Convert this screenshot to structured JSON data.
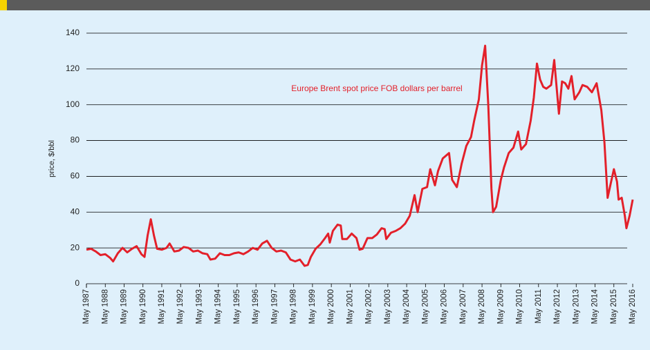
{
  "chart_data": {
    "type": "line",
    "y_label": "price, $/bbl",
    "annotation": "Europe Brent spot price FOB dollars per barrel",
    "ylim": [
      0,
      140
    ],
    "yticks": [
      0,
      20,
      40,
      60,
      80,
      100,
      120,
      140
    ],
    "grid": true,
    "xlim": [
      "1987-05",
      "2016-05"
    ],
    "xticks": [
      {
        "value": "1987-05",
        "label": "May 1987"
      },
      {
        "value": "1988-05",
        "label": "May 1988"
      },
      {
        "value": "1989-05",
        "label": "May 1989"
      },
      {
        "value": "1990-05",
        "label": "May 1990"
      },
      {
        "value": "1991-05",
        "label": "May 1991"
      },
      {
        "value": "1992-05",
        "label": "May 1992"
      },
      {
        "value": "1993-05",
        "label": "May 1993"
      },
      {
        "value": "1994-05",
        "label": "May 1994"
      },
      {
        "value": "1995-05",
        "label": "May 1995"
      },
      {
        "value": "1996-05",
        "label": "May 1996"
      },
      {
        "value": "1997-05",
        "label": "May 1997"
      },
      {
        "value": "1998-05",
        "label": "May 1998"
      },
      {
        "value": "1999-05",
        "label": "May 1999"
      },
      {
        "value": "2000-05",
        "label": "May 2000"
      },
      {
        "value": "2001-05",
        "label": "May 2001"
      },
      {
        "value": "2002-05",
        "label": "May 2002"
      },
      {
        "value": "2003-05",
        "label": "May 2003"
      },
      {
        "value": "2004-05",
        "label": "May 2004"
      },
      {
        "value": "2005-05",
        "label": "May 2005"
      },
      {
        "value": "2006-05",
        "label": "May 2006"
      },
      {
        "value": "2007-05",
        "label": "May 2007"
      },
      {
        "value": "2008-05",
        "label": "May 2008"
      },
      {
        "value": "2009-05",
        "label": "May 2009"
      },
      {
        "value": "2010-05",
        "label": "May 2010"
      },
      {
        "value": "2011-05",
        "label": "May 2011"
      },
      {
        "value": "2012-05",
        "label": "May 2012"
      },
      {
        "value": "2013-05",
        "label": "May 2013"
      },
      {
        "value": "2014-05",
        "label": "May 2014"
      },
      {
        "value": "2015-05",
        "label": "May 2015"
      },
      {
        "value": "2016-05",
        "label": "May 2016"
      }
    ],
    "x": [
      "1987-05",
      "1987-08",
      "1987-11",
      "1988-02",
      "1988-05",
      "1988-08",
      "1988-10",
      "1989-01",
      "1989-04",
      "1989-07",
      "1989-10",
      "1990-01",
      "1990-04",
      "1990-06",
      "1990-08",
      "1990-10",
      "1990-12",
      "1991-02",
      "1991-05",
      "1991-08",
      "1991-10",
      "1992-01",
      "1992-04",
      "1992-07",
      "1992-10",
      "1993-01",
      "1993-04",
      "1993-07",
      "1993-10",
      "1993-12",
      "1994-03",
      "1994-06",
      "1994-09",
      "1994-12",
      "1995-03",
      "1995-06",
      "1995-09",
      "1995-12",
      "1996-03",
      "1996-06",
      "1996-09",
      "1996-12",
      "1997-03",
      "1997-06",
      "1997-09",
      "1997-12",
      "1998-03",
      "1998-06",
      "1998-09",
      "1998-12",
      "1999-02",
      "1999-04",
      "1999-07",
      "1999-10",
      "2000-01",
      "2000-03",
      "2000-04",
      "2000-06",
      "2000-09",
      "2000-11",
      "2000-12",
      "2001-03",
      "2001-06",
      "2001-09",
      "2001-11",
      "2002-01",
      "2002-04",
      "2002-07",
      "2002-10",
      "2003-01",
      "2003-03",
      "2003-04",
      "2003-07",
      "2003-10",
      "2004-01",
      "2004-04",
      "2004-07",
      "2004-10",
      "2004-12",
      "2005-03",
      "2005-06",
      "2005-08",
      "2005-11",
      "2006-01",
      "2006-04",
      "2006-08",
      "2006-10",
      "2007-01",
      "2007-04",
      "2007-07",
      "2007-10",
      "2007-12",
      "2008-03",
      "2008-05",
      "2008-07",
      "2008-09",
      "2008-11",
      "2008-12",
      "2009-02",
      "2009-05",
      "2009-07",
      "2009-10",
      "2010-01",
      "2010-04",
      "2010-06",
      "2010-09",
      "2010-12",
      "2011-02",
      "2011-04",
      "2011-06",
      "2011-08",
      "2011-10",
      "2012-01",
      "2012-03",
      "2012-06",
      "2012-08",
      "2012-10",
      "2012-12",
      "2013-02",
      "2013-04",
      "2013-07",
      "2013-09",
      "2013-12",
      "2014-03",
      "2014-06",
      "2014-09",
      "2014-11",
      "2015-01",
      "2015-03",
      "2015-05",
      "2015-07",
      "2015-08",
      "2015-10",
      "2015-12",
      "2016-01",
      "2016-03",
      "2016-05"
    ],
    "series": [
      {
        "name": "Europe Brent spot price FOB dollars per barrel",
        "color": "#e3202a",
        "values": [
          19,
          19.5,
          18,
          16,
          16.5,
          14.5,
          12.5,
          17,
          20,
          17.5,
          19.5,
          21,
          16.5,
          15,
          27,
          36,
          27,
          19.5,
          19,
          20,
          22.5,
          18,
          18.5,
          20.5,
          20,
          18,
          18.5,
          17,
          16.5,
          13.5,
          14,
          17,
          16,
          16,
          17,
          17.5,
          16.5,
          18,
          20,
          19,
          22.5,
          24,
          20,
          18,
          18.5,
          17.5,
          13.5,
          12.5,
          13.5,
          10,
          10.5,
          15,
          19.5,
          22,
          25.5,
          28,
          23,
          29.5,
          33,
          32.5,
          25,
          25,
          28,
          25.5,
          19,
          19.5,
          25.5,
          25.5,
          27.5,
          31,
          30.5,
          25,
          28.5,
          29.5,
          31,
          33.5,
          38,
          49.5,
          40,
          53,
          54,
          64,
          55,
          63,
          70,
          73,
          58,
          54,
          67,
          77,
          82,
          91,
          103,
          122,
          133,
          100,
          53,
          40,
          43,
          58,
          65,
          73,
          76,
          85,
          75,
          78,
          91,
          104,
          123,
          114,
          110,
          109,
          111,
          125,
          95,
          113,
          112,
          109,
          116,
          103,
          107,
          111,
          110,
          107,
          112,
          97,
          79,
          48,
          56,
          64,
          57,
          47,
          48,
          38,
          31,
          38,
          47
        ]
      }
    ]
  }
}
